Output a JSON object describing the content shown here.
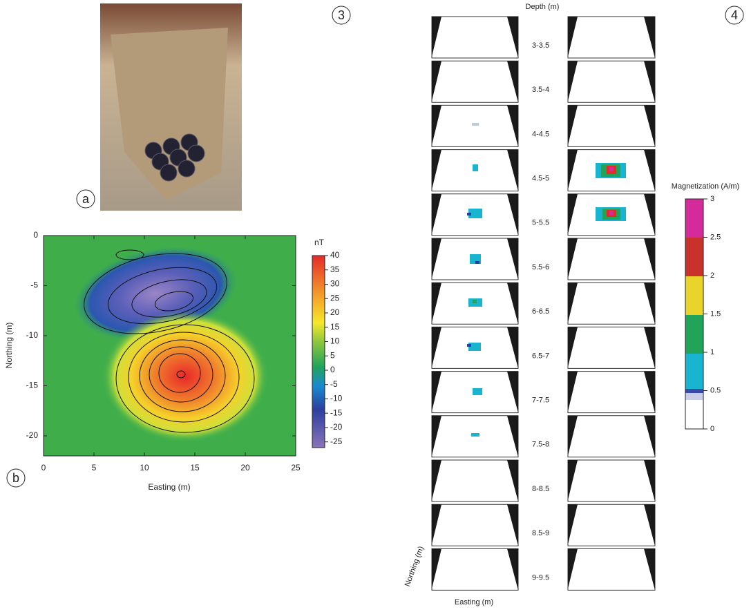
{
  "labels": {
    "a": "a",
    "b": "b",
    "c": "3",
    "d": "4"
  },
  "map": {
    "type": "contour",
    "xlabel": "Easting (m)",
    "ylabel": "Northing (m)",
    "xlim": [
      0,
      25
    ],
    "ylim": [
      -22,
      0
    ],
    "xticks": [
      0,
      5,
      10,
      15,
      20,
      25
    ],
    "yticks": [
      0,
      -5,
      -10,
      -15,
      -20
    ],
    "colorbar": {
      "title": "nT",
      "lim": [
        -27,
        40
      ],
      "ticks": [
        40,
        35,
        30,
        25,
        20,
        15,
        10,
        5,
        0,
        -5,
        -10,
        -15,
        -20,
        -25
      ]
    }
  },
  "slices": {
    "title": "Depth (m)",
    "depths": [
      "3-3.5",
      "3.5-4",
      "4-4.5",
      "4.5-5",
      "5-5.5",
      "5.5-6",
      "6-6.5",
      "6.5-7",
      "7-7.5",
      "7.5-8",
      "8-8.5",
      "8.5-9",
      "9-9.5"
    ],
    "xlabel": "Easting (m)",
    "ylabel": "Northing (m)"
  },
  "colorbar2": {
    "title": "Magnetization (A/m)",
    "lim": [
      0,
      3
    ],
    "ticks": [
      3,
      2.5,
      2,
      1.5,
      1,
      0.5,
      0
    ]
  }
}
